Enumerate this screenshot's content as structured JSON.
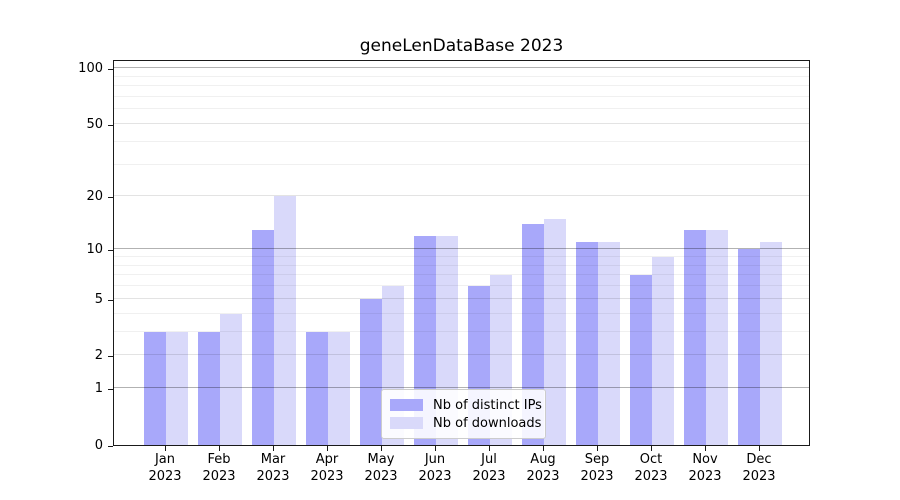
{
  "title": "geneLenDataBase 2023",
  "legend": [
    {
      "label": "Nb of distinct IPs",
      "color": "#a8a8fa"
    },
    {
      "label": "Nb of downloads",
      "color": "#d9d9fa"
    }
  ],
  "chart_data": {
    "type": "bar",
    "title": "geneLenDataBase 2023",
    "categories": [
      "Jan 2023",
      "Feb 2023",
      "Mar 2023",
      "Apr 2023",
      "May 2023",
      "Jun 2023",
      "Jul 2023",
      "Aug 2023",
      "Sep 2023",
      "Oct 2023",
      "Nov 2023",
      "Dec 2023"
    ],
    "series": [
      {
        "name": "Nb of distinct IPs",
        "color": "#a8a8fa",
        "values": [
          3,
          3,
          13,
          3,
          5,
          12,
          6,
          14,
          11,
          7,
          13,
          10
        ]
      },
      {
        "name": "Nb of downloads",
        "color": "#d9d9fa",
        "values": [
          3,
          4,
          20,
          3,
          6,
          12,
          7,
          15,
          11,
          9,
          13,
          11
        ]
      }
    ],
    "xlabel": "",
    "ylabel": "",
    "yscale": "log1p",
    "yticks": [
      0,
      1,
      2,
      5,
      10,
      20,
      50,
      100
    ],
    "ylim": [
      0,
      112
    ],
    "grid": true,
    "grid_over_bars": true,
    "legend_position": "lower center"
  }
}
